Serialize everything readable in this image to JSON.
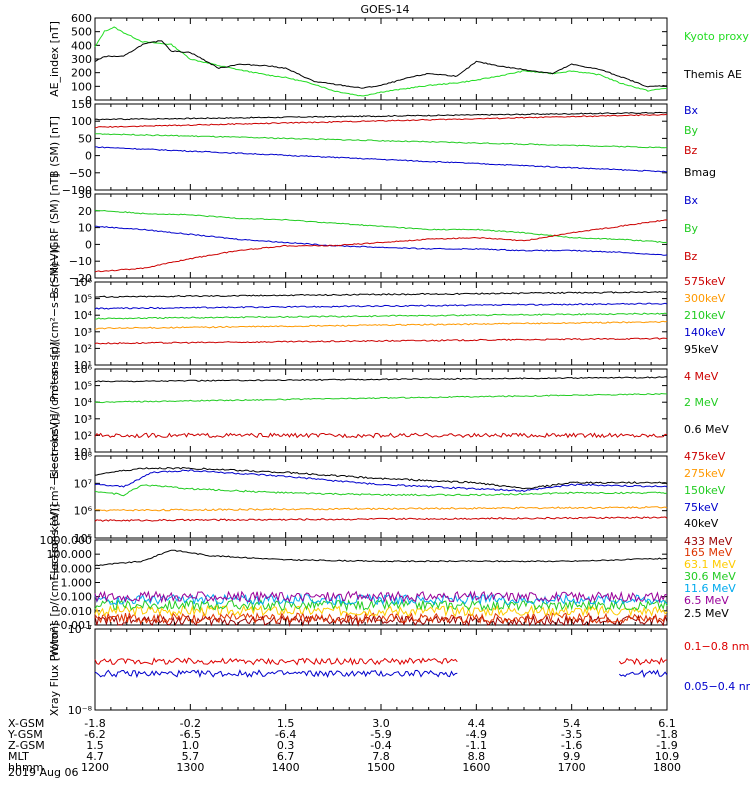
{
  "title": "GOES-14",
  "date_label": "2019 Aug 06",
  "ephemeris": {
    "row_labels": [
      "X-GSM",
      "Y-GSM",
      "Z-GSM",
      "MLT",
      "hhmm"
    ],
    "columns": [
      [
        "-1.8",
        "-6.2",
        "1.5",
        "4.7",
        "1200"
      ],
      [
        "-0.2",
        "-6.5",
        "1.0",
        "5.7",
        "1300"
      ],
      [
        "1.5",
        "-6.4",
        "0.3",
        "6.7",
        "1400"
      ],
      [
        "3.0",
        "-5.9",
        "-0.4",
        "7.8",
        "1500"
      ],
      [
        "4.4",
        "-4.9",
        "-1.1",
        "8.8",
        "1600"
      ],
      [
        "5.4",
        "-3.5",
        "-1.6",
        "9.9",
        "1700"
      ],
      [
        "6.1",
        "-1.8",
        "-1.9",
        "10.9",
        "1800"
      ]
    ]
  },
  "chart_data": [
    {
      "type": "line",
      "ylabel": "AE_index [nT]",
      "ylim": [
        0,
        620
      ],
      "yticks": [
        "0",
        "100",
        "200",
        "300",
        "400",
        "500",
        "600"
      ],
      "series": [
        {
          "name": "Kyoto proxy AE",
          "color": "#22dd22",
          "x": [
            0,
            0.1,
            0.2,
            0.3,
            0.5,
            0.8,
            1.0,
            1.3,
            1.5,
            1.8,
            2.0,
            2.3,
            2.5,
            2.8,
            3.0,
            3.3,
            3.5,
            3.8,
            4.0,
            4.3,
            4.5,
            4.8,
            5.0,
            5.3,
            5.5,
            5.8,
            6.0
          ],
          "values": [
            400,
            520,
            550,
            510,
            440,
            420,
            310,
            260,
            230,
            190,
            170,
            120,
            70,
            30,
            60,
            90,
            110,
            130,
            150,
            190,
            220,
            200,
            220,
            190,
            130,
            70,
            90
          ]
        },
        {
          "name": "Themis AE",
          "color": "#000000",
          "x": [
            0,
            0.1,
            0.3,
            0.5,
            0.7,
            0.8,
            1.0,
            1.3,
            1.5,
            1.8,
            2.0,
            2.3,
            2.5,
            2.8,
            3.0,
            3.3,
            3.5,
            3.8,
            4.0,
            4.3,
            4.5,
            4.8,
            5.0,
            5.3,
            5.5,
            5.8,
            6.0
          ],
          "values": [
            290,
            330,
            330,
            420,
            450,
            370,
            360,
            240,
            270,
            260,
            240,
            140,
            120,
            90,
            110,
            170,
            200,
            180,
            290,
            250,
            230,
            200,
            270,
            230,
            180,
            100,
            110
          ]
        }
      ]
    },
    {
      "type": "line",
      "ylabel": "B (SM) [nT]",
      "ylim": [
        -110,
        150
      ],
      "yticks": [
        "−100",
        "−50",
        "0",
        "50",
        "100",
        "150"
      ],
      "series": [
        {
          "name": "Bx",
          "color": "#0000cc",
          "x": [
            0,
            6
          ],
          "values": [
            20,
            -55
          ]
        },
        {
          "name": "By",
          "color": "#22cc22",
          "x": [
            0,
            6
          ],
          "values": [
            60,
            18
          ]
        },
        {
          "name": "Bz",
          "color": "#cc0000",
          "x": [
            0,
            6
          ],
          "values": [
            80,
            118
          ]
        },
        {
          "name": "Bmag",
          "color": "#000000",
          "x": [
            0,
            6
          ],
          "values": [
            103,
            124
          ]
        }
      ]
    },
    {
      "type": "line",
      "ylabel": "B (SM)−IGRF (SM) [nT]",
      "ylim": [
        -22,
        30
      ],
      "yticks": [
        "−20",
        "−10",
        "0",
        "10",
        "20",
        "30"
      ],
      "series": [
        {
          "name": "Bx",
          "color": "#0000cc",
          "x": [
            0,
            0.5,
            1.0,
            1.5,
            2.0,
            2.5,
            3.0,
            3.5,
            4.0,
            4.5,
            5.0,
            5.5,
            6.0
          ],
          "values": [
            10,
            8,
            5,
            2,
            0,
            -2,
            -3,
            -4,
            -4,
            -5,
            -5,
            -6,
            -8
          ]
        },
        {
          "name": "By",
          "color": "#22cc22",
          "x": [
            0,
            0.5,
            1.0,
            1.5,
            2.0,
            2.5,
            3.0,
            3.5,
            4.0,
            4.5,
            5.0,
            5.5,
            6.0
          ],
          "values": [
            20,
            18,
            17,
            15,
            14,
            12,
            10,
            8,
            8,
            6,
            3,
            2,
            0
          ]
        },
        {
          "name": "Bz",
          "color": "#cc0000",
          "x": [
            0,
            0.5,
            1.0,
            1.5,
            2.0,
            2.5,
            3.0,
            3.5,
            4.0,
            4.5,
            5.0,
            5.5,
            6.0
          ],
          "values": [
            -18,
            -16,
            -10,
            -5,
            -2,
            -2,
            0,
            2,
            3,
            1,
            6,
            10,
            14
          ]
        }
      ]
    },
    {
      "type": "line",
      "ylabel": "Protons [p/(cm²−s−sr−keV)]",
      "yscale": "log",
      "ylim": [
        1,
        6
      ],
      "yticks": [
        "10¹",
        "10²",
        "10³",
        "10⁴",
        "10⁵",
        "10⁶"
      ],
      "series": [
        {
          "name": "575keV",
          "color": "#cc0000",
          "x": [
            0,
            6
          ],
          "values": [
            2.3,
            2.6
          ]
        },
        {
          "name": "300keV",
          "color": "#ff9900",
          "x": [
            0,
            6
          ],
          "values": [
            3.2,
            3.6
          ]
        },
        {
          "name": "210keV",
          "color": "#22cc22",
          "x": [
            0,
            6
          ],
          "values": [
            3.8,
            4.1
          ]
        },
        {
          "name": "140keV",
          "color": "#0000cc",
          "x": [
            0,
            6
          ],
          "values": [
            4.4,
            4.7
          ]
        },
        {
          "name": "95keV",
          "color": "#000000",
          "x": [
            0,
            6
          ],
          "values": [
            5.1,
            5.4
          ]
        }
      ]
    },
    {
      "type": "line",
      "ylabel": "Electrons [e/(cm²−s−sr)]",
      "yscale": "log",
      "ylim": [
        0,
        6
      ],
      "yticks": [
        "10¹",
        "10²",
        "10³",
        "10⁴",
        "10⁵",
        "10⁶"
      ],
      "series": [
        {
          "name": "4 MeV",
          "color": "#cc0000",
          "x": [
            0,
            6
          ],
          "values": [
            1.2,
            1.2
          ]
        },
        {
          "name": "2 MeV",
          "color": "#22cc22",
          "x": [
            0,
            6
          ],
          "values": [
            3.6,
            4.2
          ]
        },
        {
          "name": "0.6 MeV",
          "color": "#000000",
          "x": [
            0,
            6
          ],
          "values": [
            5.1,
            5.4
          ]
        }
      ]
    },
    {
      "type": "line",
      "ylabel": "Electrons [e/(cm²−s−sr−keV)]",
      "yscale": "log",
      "ylim": [
        4,
        8
      ],
      "yticks": [
        "10⁵",
        "10⁶",
        "10⁷",
        "10⁸"
      ],
      "series": [
        {
          "name": "475keV",
          "color": "#cc0000",
          "x": [
            0,
            6
          ],
          "values": [
            4.85,
            5.0
          ]
        },
        {
          "name": "275keV",
          "color": "#ff9900",
          "x": [
            0,
            6
          ],
          "values": [
            5.35,
            5.5
          ]
        },
        {
          "name": "150keV",
          "color": "#22cc22",
          "x": [
            0,
            0.3,
            0.5,
            1.0,
            2.0,
            3.0,
            4.0,
            5.0,
            6.0
          ],
          "values": [
            6.3,
            6.1,
            6.6,
            6.4,
            6.2,
            6.1,
            6.1,
            6.2,
            6.2
          ]
        },
        {
          "name": "75keV",
          "color": "#0000cc",
          "x": [
            0,
            0.3,
            0.6,
            1.0,
            2.0,
            3.0,
            4.0,
            4.5,
            5.0,
            6.0
          ],
          "values": [
            6.6,
            6.5,
            7.2,
            7.3,
            7.0,
            6.6,
            6.4,
            6.3,
            6.6,
            6.5
          ]
        },
        {
          "name": "40keV",
          "color": "#000000",
          "x": [
            0,
            0.5,
            1.0,
            2.0,
            3.0,
            4.0,
            4.5,
            5.0,
            6.0
          ],
          "values": [
            7.1,
            7.4,
            7.4,
            7.2,
            6.9,
            6.7,
            6.4,
            6.7,
            6.7
          ]
        }
      ]
    },
    {
      "type": "line",
      "ylabel": "Protons [p/(cm²−s−sr−keV)]",
      "yscale": "log",
      "ylim": [
        -3,
        3
      ],
      "yticks": [
        "0.001",
        "0.010",
        "0.100",
        "1.000",
        "10.000",
        "100.000",
        "1000.000"
      ],
      "series": [
        {
          "name": "433 MeV",
          "color": "#990000",
          "x": [
            0,
            6
          ],
          "values": [
            -2.7,
            -2.7
          ]
        },
        {
          "name": "165 MeV",
          "color": "#dd3300",
          "x": [
            0,
            6
          ],
          "values": [
            -2.5,
            -2.5
          ]
        },
        {
          "name": "63.1 MeV",
          "color": "#ffcc00",
          "x": [
            0,
            6
          ],
          "values": [
            -2.0,
            -2.0
          ]
        },
        {
          "name": "30.6 MeV",
          "color": "#22cc22",
          "x": [
            0,
            6
          ],
          "values": [
            -1.6,
            -1.6
          ]
        },
        {
          "name": "11.6 MeV",
          "color": "#00aaee",
          "x": [
            0,
            6
          ],
          "values": [
            -1.2,
            -1.2
          ]
        },
        {
          "name": "6.5 MeV",
          "color": "#990099",
          "x": [
            0,
            6
          ],
          "values": [
            -1.0,
            -1.0
          ]
        },
        {
          "name": "2.5 MeV",
          "color": "#000000",
          "x": [
            0,
            0.5,
            0.8,
            1.2,
            2.0,
            3.0,
            4.0,
            5.0,
            6.0
          ],
          "values": [
            1.2,
            1.5,
            2.3,
            1.9,
            1.6,
            1.5,
            1.5,
            1.5,
            1.7
          ]
        }
      ]
    },
    {
      "type": "line",
      "ylabel": "Xray Flux [W/m²]",
      "yscale": "log",
      "ylim": [
        -8,
        -7
      ],
      "yticks": [
        "10⁻⁸",
        "10⁻⁷"
      ],
      "series": [
        {
          "name": "0.1−0.8 nm",
          "color": "#dd0000",
          "x": [
            0,
            3.8,
            5.5,
            6.0
          ],
          "values": [
            -7.4,
            -7.4,
            -7.4,
            -7.4
          ],
          "gaps": [
            [
              3.8,
              5.5
            ]
          ]
        },
        {
          "name": "0.05−0.4 nm",
          "color": "#0000cc",
          "x": [
            0,
            3.8,
            5.5,
            6.0
          ],
          "values": [
            -7.55,
            -7.55,
            -7.55,
            -7.55
          ],
          "gaps": [
            [
              3.8,
              5.5
            ]
          ]
        }
      ]
    }
  ]
}
